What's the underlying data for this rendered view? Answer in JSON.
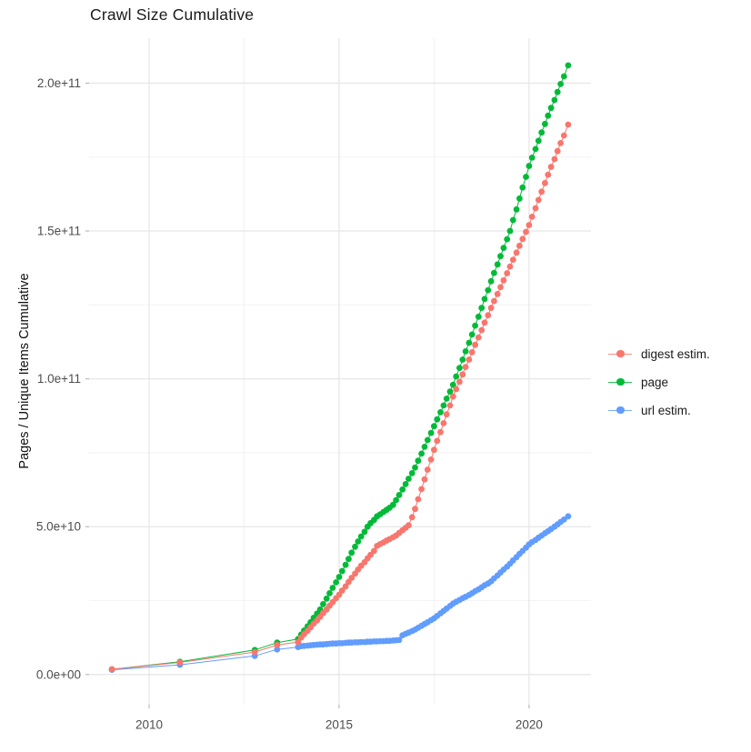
{
  "title": "Crawl Size Cumulative",
  "chart_data": {
    "type": "scatter",
    "title": "Crawl Size Cumulative",
    "xlabel": "",
    "ylabel": "Pages / Unique Items Cumulative",
    "note": "x = calendar year (decimal), y = cumulative count; point values stored in billions (1e9)",
    "value_unit": 1000000000,
    "xlim": [
      2008.42,
      2021.63
    ],
    "ylim_e9": [
      -10.2,
      215.2
    ],
    "grid": true,
    "legend_position": "right",
    "x_ticks": {
      "values": [
        2010,
        2015,
        2020
      ],
      "labels": [
        "2010",
        "2015",
        "2020"
      ],
      "minor": [
        2012.5,
        2017.5
      ]
    },
    "y_ticks": {
      "values_e9": [
        0,
        50,
        100,
        150,
        200
      ],
      "labels": [
        "0.0e+00",
        "5.0e+10",
        "1.0e+11",
        "1.5e+11",
        "2.0e+11"
      ],
      "minor_e9": [
        25,
        75,
        125,
        175
      ]
    },
    "series": [
      {
        "name": "digest estim.",
        "key": "digest-estim",
        "color": "#F8766D",
        "z": 3,
        "points": [
          [
            2009.02,
            1.8
          ],
          [
            2010.81,
            4.1
          ],
          [
            2012.78,
            7.6
          ],
          [
            2013.37,
            10.0
          ],
          [
            2013.92,
            11.0
          ],
          [
            2014.0,
            12.5
          ],
          [
            2014.08,
            13.7
          ],
          [
            2014.17,
            14.8
          ],
          [
            2014.25,
            16.0
          ],
          [
            2014.33,
            17.2
          ],
          [
            2014.42,
            18.3
          ],
          [
            2014.5,
            19.5
          ],
          [
            2014.58,
            20.8
          ],
          [
            2014.67,
            22.0
          ],
          [
            2014.75,
            23.3
          ],
          [
            2014.83,
            24.5
          ],
          [
            2014.92,
            25.8
          ],
          [
            2015.0,
            27.0
          ],
          [
            2015.08,
            28.4
          ],
          [
            2015.17,
            29.8
          ],
          [
            2015.25,
            31.3
          ],
          [
            2015.33,
            32.7
          ],
          [
            2015.42,
            34.1
          ],
          [
            2015.5,
            35.5
          ],
          [
            2015.58,
            36.8
          ],
          [
            2015.67,
            38.0
          ],
          [
            2015.75,
            39.3
          ],
          [
            2015.83,
            40.5
          ],
          [
            2015.92,
            41.8
          ],
          [
            2016.0,
            43.5
          ],
          [
            2016.08,
            44.1
          ],
          [
            2016.17,
            44.7
          ],
          [
            2016.25,
            45.3
          ],
          [
            2016.33,
            45.8
          ],
          [
            2016.42,
            46.4
          ],
          [
            2016.5,
            47.0
          ],
          [
            2016.58,
            47.9
          ],
          [
            2016.67,
            48.8
          ],
          [
            2016.75,
            49.6
          ],
          [
            2016.83,
            50.5
          ],
          [
            2016.92,
            53.2
          ],
          [
            2017.0,
            56.0
          ],
          [
            2017.08,
            59.3
          ],
          [
            2017.17,
            62.7
          ],
          [
            2017.25,
            66.0
          ],
          [
            2017.33,
            69.3
          ],
          [
            2017.42,
            72.7
          ],
          [
            2017.5,
            76.0
          ],
          [
            2017.58,
            79.0
          ],
          [
            2017.67,
            82.0
          ],
          [
            2017.75,
            85.0
          ],
          [
            2017.83,
            88.0
          ],
          [
            2017.92,
            91.0
          ],
          [
            2018.0,
            94.0
          ],
          [
            2018.08,
            96.5
          ],
          [
            2018.17,
            99.0
          ],
          [
            2018.25,
            101.5
          ],
          [
            2018.33,
            104.0
          ],
          [
            2018.42,
            106.5
          ],
          [
            2018.5,
            109.0
          ],
          [
            2018.58,
            111.5
          ],
          [
            2018.67,
            114.0
          ],
          [
            2018.75,
            116.5
          ],
          [
            2018.83,
            119.0
          ],
          [
            2018.92,
            121.5
          ],
          [
            2019.0,
            124.0
          ],
          [
            2019.08,
            126.3
          ],
          [
            2019.17,
            128.7
          ],
          [
            2019.25,
            131.0
          ],
          [
            2019.33,
            133.3
          ],
          [
            2019.42,
            135.7
          ],
          [
            2019.5,
            138.0
          ],
          [
            2019.58,
            140.3
          ],
          [
            2019.67,
            142.7
          ],
          [
            2019.75,
            145.0
          ],
          [
            2019.83,
            147.3
          ],
          [
            2019.92,
            149.7
          ],
          [
            2020.0,
            152.0
          ],
          [
            2020.08,
            154.8
          ],
          [
            2020.17,
            157.7
          ],
          [
            2020.25,
            160.5
          ],
          [
            2020.33,
            163.3
          ],
          [
            2020.42,
            166.2
          ],
          [
            2020.5,
            169.0
          ],
          [
            2020.58,
            171.7
          ],
          [
            2020.67,
            174.3
          ],
          [
            2020.75,
            177.0
          ],
          [
            2020.83,
            179.7
          ],
          [
            2020.92,
            182.3
          ],
          [
            2021.03,
            186.0
          ]
        ]
      },
      {
        "name": "page",
        "key": "page",
        "color": "#00BA38",
        "z": 1,
        "points": [
          [
            2009.02,
            1.8
          ],
          [
            2010.81,
            4.3
          ],
          [
            2012.78,
            8.3
          ],
          [
            2013.37,
            10.8
          ],
          [
            2013.92,
            12.0
          ],
          [
            2014.0,
            13.5
          ],
          [
            2014.08,
            14.9
          ],
          [
            2014.17,
            16.3
          ],
          [
            2014.25,
            17.7
          ],
          [
            2014.33,
            19.2
          ],
          [
            2014.42,
            20.6
          ],
          [
            2014.5,
            22.0
          ],
          [
            2014.58,
            23.8
          ],
          [
            2014.67,
            25.7
          ],
          [
            2014.75,
            27.5
          ],
          [
            2014.83,
            29.3
          ],
          [
            2014.92,
            31.2
          ],
          [
            2015.0,
            33.0
          ],
          [
            2015.08,
            35.0
          ],
          [
            2015.17,
            37.1
          ],
          [
            2015.25,
            39.1
          ],
          [
            2015.33,
            41.2
          ],
          [
            2015.42,
            43.2
          ],
          [
            2015.5,
            45.0
          ],
          [
            2015.58,
            46.7
          ],
          [
            2015.67,
            48.3
          ],
          [
            2015.75,
            50.0
          ],
          [
            2015.83,
            51.2
          ],
          [
            2015.92,
            52.3
          ],
          [
            2016.0,
            53.5
          ],
          [
            2016.08,
            54.2
          ],
          [
            2016.17,
            55.0
          ],
          [
            2016.25,
            55.7
          ],
          [
            2016.33,
            56.4
          ],
          [
            2016.42,
            57.4
          ],
          [
            2016.5,
            59.0
          ],
          [
            2016.58,
            60.7
          ],
          [
            2016.67,
            62.6
          ],
          [
            2016.75,
            64.4
          ],
          [
            2016.83,
            66.2
          ],
          [
            2016.92,
            68.1
          ],
          [
            2017.0,
            70.0
          ],
          [
            2017.08,
            72.3
          ],
          [
            2017.17,
            74.7
          ],
          [
            2017.25,
            77.0
          ],
          [
            2017.33,
            79.3
          ],
          [
            2017.42,
            81.7
          ],
          [
            2017.5,
            84.0
          ],
          [
            2017.58,
            86.3
          ],
          [
            2017.67,
            88.7
          ],
          [
            2017.75,
            91.0
          ],
          [
            2017.83,
            93.3
          ],
          [
            2017.92,
            95.7
          ],
          [
            2018.0,
            98.0
          ],
          [
            2018.08,
            100.8
          ],
          [
            2018.17,
            103.7
          ],
          [
            2018.25,
            106.5
          ],
          [
            2018.33,
            109.3
          ],
          [
            2018.42,
            112.2
          ],
          [
            2018.5,
            115.0
          ],
          [
            2018.58,
            118.0
          ],
          [
            2018.67,
            121.0
          ],
          [
            2018.75,
            124.0
          ],
          [
            2018.83,
            127.0
          ],
          [
            2018.92,
            130.0
          ],
          [
            2019.0,
            133.0
          ],
          [
            2019.08,
            135.8
          ],
          [
            2019.17,
            138.7
          ],
          [
            2019.25,
            141.5
          ],
          [
            2019.33,
            144.3
          ],
          [
            2019.42,
            147.2
          ],
          [
            2019.5,
            150.0
          ],
          [
            2019.58,
            153.7
          ],
          [
            2019.67,
            157.3
          ],
          [
            2019.75,
            161.0
          ],
          [
            2019.83,
            164.7
          ],
          [
            2019.92,
            168.3
          ],
          [
            2020.0,
            172.0
          ],
          [
            2020.08,
            174.8
          ],
          [
            2020.17,
            177.7
          ],
          [
            2020.25,
            180.5
          ],
          [
            2020.33,
            183.3
          ],
          [
            2020.42,
            186.2
          ],
          [
            2020.5,
            189.0
          ],
          [
            2020.58,
            191.6
          ],
          [
            2020.67,
            194.3
          ],
          [
            2020.75,
            197.0
          ],
          [
            2020.83,
            199.7
          ],
          [
            2020.92,
            202.3
          ],
          [
            2021.03,
            206.0
          ]
        ]
      },
      {
        "name": "url estim.",
        "key": "url-estim",
        "color": "#619CFF",
        "z": 2,
        "points": [
          [
            2009.02,
            1.6
          ],
          [
            2010.81,
            3.3
          ],
          [
            2012.78,
            6.3
          ],
          [
            2013.37,
            8.5
          ],
          [
            2013.92,
            9.3
          ],
          [
            2014.0,
            9.6
          ],
          [
            2014.08,
            9.7
          ],
          [
            2014.17,
            9.8
          ],
          [
            2014.25,
            9.9
          ],
          [
            2014.33,
            10.0
          ],
          [
            2014.42,
            10.1
          ],
          [
            2014.5,
            10.2
          ],
          [
            2014.58,
            10.2
          ],
          [
            2014.67,
            10.3
          ],
          [
            2014.75,
            10.4
          ],
          [
            2014.83,
            10.5
          ],
          [
            2014.92,
            10.5
          ],
          [
            2015.0,
            10.6
          ],
          [
            2015.08,
            10.6
          ],
          [
            2015.17,
            10.7
          ],
          [
            2015.25,
            10.8
          ],
          [
            2015.33,
            10.8
          ],
          [
            2015.42,
            10.9
          ],
          [
            2015.5,
            10.9
          ],
          [
            2015.58,
            11.0
          ],
          [
            2015.67,
            11.0
          ],
          [
            2015.75,
            11.1
          ],
          [
            2015.83,
            11.1
          ],
          [
            2015.92,
            11.2
          ],
          [
            2016.0,
            11.2
          ],
          [
            2016.08,
            11.3
          ],
          [
            2016.17,
            11.3
          ],
          [
            2016.25,
            11.4
          ],
          [
            2016.33,
            11.4
          ],
          [
            2016.42,
            11.5
          ],
          [
            2016.5,
            11.6
          ],
          [
            2016.58,
            11.7
          ],
          [
            2016.67,
            13.3
          ],
          [
            2016.75,
            13.8
          ],
          [
            2016.83,
            14.2
          ],
          [
            2016.92,
            14.7
          ],
          [
            2017.0,
            15.2
          ],
          [
            2017.08,
            15.8
          ],
          [
            2017.17,
            16.5
          ],
          [
            2017.25,
            17.1
          ],
          [
            2017.33,
            17.7
          ],
          [
            2017.42,
            18.4
          ],
          [
            2017.5,
            19.0
          ],
          [
            2017.58,
            19.8
          ],
          [
            2017.67,
            20.7
          ],
          [
            2017.75,
            21.5
          ],
          [
            2017.83,
            22.3
          ],
          [
            2017.92,
            23.2
          ],
          [
            2018.0,
            24.0
          ],
          [
            2018.08,
            24.6
          ],
          [
            2018.17,
            25.2
          ],
          [
            2018.25,
            25.8
          ],
          [
            2018.33,
            26.3
          ],
          [
            2018.42,
            26.9
          ],
          [
            2018.5,
            27.5
          ],
          [
            2018.58,
            28.2
          ],
          [
            2018.67,
            28.8
          ],
          [
            2018.75,
            29.5
          ],
          [
            2018.83,
            30.2
          ],
          [
            2018.92,
            30.8
          ],
          [
            2019.0,
            31.5
          ],
          [
            2019.08,
            32.5
          ],
          [
            2019.17,
            33.5
          ],
          [
            2019.25,
            34.5
          ],
          [
            2019.33,
            35.5
          ],
          [
            2019.42,
            36.5
          ],
          [
            2019.5,
            37.5
          ],
          [
            2019.58,
            38.6
          ],
          [
            2019.67,
            39.7
          ],
          [
            2019.75,
            40.8
          ],
          [
            2019.83,
            41.8
          ],
          [
            2019.92,
            42.9
          ],
          [
            2020.0,
            44.0
          ],
          [
            2020.08,
            44.8
          ],
          [
            2020.17,
            45.5
          ],
          [
            2020.25,
            46.3
          ],
          [
            2020.33,
            47.0
          ],
          [
            2020.42,
            47.8
          ],
          [
            2020.5,
            48.5
          ],
          [
            2020.58,
            49.2
          ],
          [
            2020.67,
            50.0
          ],
          [
            2020.75,
            50.8
          ],
          [
            2020.83,
            51.6
          ],
          [
            2020.92,
            52.4
          ],
          [
            2021.03,
            53.5
          ]
        ]
      }
    ]
  }
}
